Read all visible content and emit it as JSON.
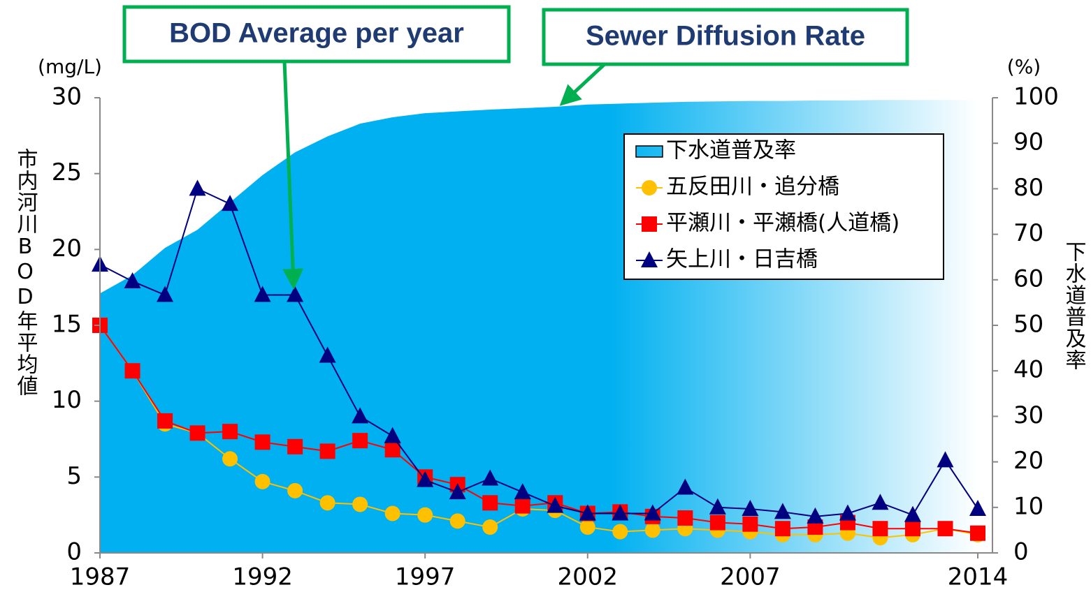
{
  "chart_data": {
    "type": "line",
    "x": [
      1987,
      1988,
      1989,
      1990,
      1991,
      1992,
      1993,
      1994,
      1995,
      1996,
      1997,
      1998,
      1999,
      2000,
      2001,
      2002,
      2003,
      2004,
      2005,
      2006,
      2007,
      2008,
      2009,
      2010,
      2011,
      2012,
      2013,
      2014
    ],
    "xlim": [
      1987,
      2014
    ],
    "xticks": [
      1987,
      1992,
      1997,
      2002,
      2007,
      2014
    ],
    "ylim": [
      0,
      30
    ],
    "yticks": [
      0,
      5,
      10,
      15,
      20,
      25,
      30
    ],
    "y2lim": [
      0,
      100
    ],
    "y2ticks": [
      0,
      10,
      20,
      30,
      40,
      50,
      60,
      70,
      80,
      90,
      100
    ],
    "y_unit": "(mg/L)",
    "y2_unit": "(%)",
    "y_label": "市内河川BOD年平均値",
    "y2_label": "下水道普及率",
    "annotations": [
      "BOD Average per year",
      "Sewer Diffusion Rate"
    ],
    "series": [
      {
        "name": "下水道普及率",
        "type": "area",
        "axis": "y2",
        "color": "#00b0f0",
        "values": [
          57,
          61,
          67,
          71,
          77,
          83,
          88,
          91.5,
          94.3,
          95.7,
          96.6,
          97,
          97.4,
          97.7,
          98,
          98.5,
          98.7,
          98.9,
          99.1,
          99.2,
          99.3,
          99.3,
          99.4,
          99.4,
          99.5,
          99.5,
          99.5,
          99.5
        ]
      },
      {
        "name": "五反田川・追分橋",
        "marker": "circle",
        "color": "#ffc000",
        "values": [
          15,
          12,
          8.5,
          7.9,
          6.2,
          4.7,
          4.1,
          3.3,
          3.2,
          2.6,
          2.5,
          2.1,
          1.7,
          2.9,
          2.8,
          1.7,
          1.4,
          1.5,
          1.6,
          1.5,
          1.4,
          1.2,
          1.2,
          1.3,
          1.0,
          1.2,
          1.6,
          1.2
        ]
      },
      {
        "name": "平瀬川・平瀬橋(人道橋)",
        "marker": "square",
        "color": "#ff0000",
        "values": [
          15,
          12,
          8.7,
          7.9,
          8.0,
          7.3,
          7.0,
          6.7,
          7.4,
          6.8,
          5.0,
          4.5,
          3.3,
          3.1,
          3.3,
          2.6,
          2.7,
          2.4,
          2.3,
          2.0,
          1.9,
          1.6,
          1.7,
          2.0,
          1.6,
          1.6,
          1.6,
          1.3
        ]
      },
      {
        "name": "矢上川・日吉橋",
        "marker": "triangle",
        "color": "#000080",
        "values": [
          19,
          17.9,
          17.0,
          24,
          23,
          17.0,
          17.0,
          13,
          9,
          7.7,
          4.8,
          4.0,
          4.9,
          4.0,
          3.1,
          2.6,
          2.6,
          2.6,
          4.3,
          3.0,
          2.9,
          2.7,
          2.4,
          2.6,
          3.3,
          2.5,
          6.1,
          2.9
        ]
      }
    ]
  }
}
